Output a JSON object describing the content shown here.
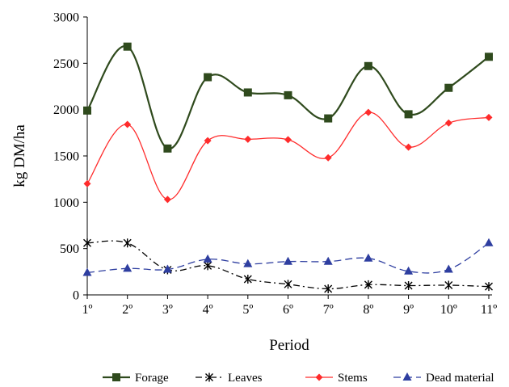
{
  "chart_data": {
    "type": "line",
    "title": "",
    "xlabel": "Period",
    "ylabel": "kg DM/ha",
    "ylim": [
      0,
      3000
    ],
    "yticks": [
      "0",
      "500",
      "1000",
      "1500",
      "2000",
      "2500",
      "3000"
    ],
    "categories": [
      "1º",
      "2º",
      "3º",
      "4º",
      "5º",
      "6º",
      "7º",
      "8º",
      "9º",
      "10º",
      "11º"
    ],
    "grid": false,
    "legend_position": "bottom",
    "series": [
      {
        "name": "Forage",
        "color": "#2f4a1d",
        "line_style": "solid",
        "marker": "square",
        "values": [
          1990,
          2680,
          1580,
          2350,
          2185,
          2155,
          1905,
          2470,
          1950,
          2235,
          2570
        ]
      },
      {
        "name": "Leaves",
        "color": "#000000",
        "line_style": "dash-dot",
        "marker": "asterisk",
        "values": [
          560,
          560,
          270,
          315,
          170,
          115,
          65,
          110,
          100,
          105,
          90
        ]
      },
      {
        "name": "Stems",
        "color": "#ff2b2b",
        "line_style": "solid",
        "marker": "diamond",
        "values": [
          1200,
          1840,
          1030,
          1665,
          1680,
          1675,
          1480,
          1970,
          1595,
          1855,
          1915
        ]
      },
      {
        "name": "Dead material",
        "color": "#2e3ea0",
        "line_style": "dashed",
        "marker": "triangle",
        "values": [
          240,
          285,
          275,
          385,
          335,
          360,
          360,
          395,
          255,
          275,
          560
        ]
      }
    ]
  }
}
